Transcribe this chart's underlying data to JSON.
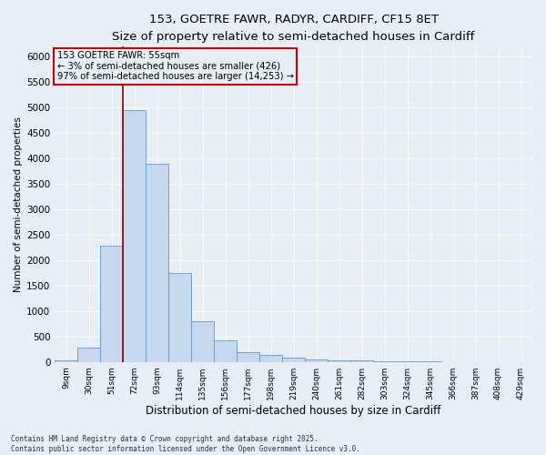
{
  "title1": "153, GOETRE FAWR, RADYR, CARDIFF, CF15 8ET",
  "title2": "Size of property relative to semi-detached houses in Cardiff",
  "xlabel": "Distribution of semi-detached houses by size in Cardiff",
  "ylabel": "Number of semi-detached properties",
  "categories": [
    "9sqm",
    "30sqm",
    "51sqm",
    "72sqm",
    "93sqm",
    "114sqm",
    "135sqm",
    "156sqm",
    "177sqm",
    "198sqm",
    "219sqm",
    "240sqm",
    "261sqm",
    "282sqm",
    "303sqm",
    "324sqm",
    "345sqm",
    "366sqm",
    "387sqm",
    "408sqm",
    "429sqm"
  ],
  "values": [
    30,
    280,
    2280,
    4950,
    3900,
    1750,
    800,
    430,
    190,
    130,
    85,
    55,
    35,
    22,
    12,
    8,
    5,
    3,
    2,
    1,
    0
  ],
  "bar_color": "#c5d8ee",
  "bar_edgecolor": "#5b9bd5",
  "line_color": "#8b0000",
  "annotation_title": "153 GOETRE FAWR: 55sqm",
  "annotation_line1": "← 3% of semi-detached houses are smaller (426)",
  "annotation_line2": "97% of semi-detached houses are larger (14,253) →",
  "annotation_box_edgecolor": "#cc0000",
  "ylim": [
    0,
    6200
  ],
  "yticks": [
    0,
    500,
    1000,
    1500,
    2000,
    2500,
    3000,
    3500,
    4000,
    4500,
    5000,
    5500,
    6000
  ],
  "footer1": "Contains HM Land Registry data © Crown copyright and database right 2025.",
  "footer2": "Contains public sector information licensed under the Open Government Licence v3.0.",
  "bg_color": "#e8eef5",
  "grid_color": "#ffffff",
  "title1_fontsize": 10.5,
  "title2_fontsize": 9
}
